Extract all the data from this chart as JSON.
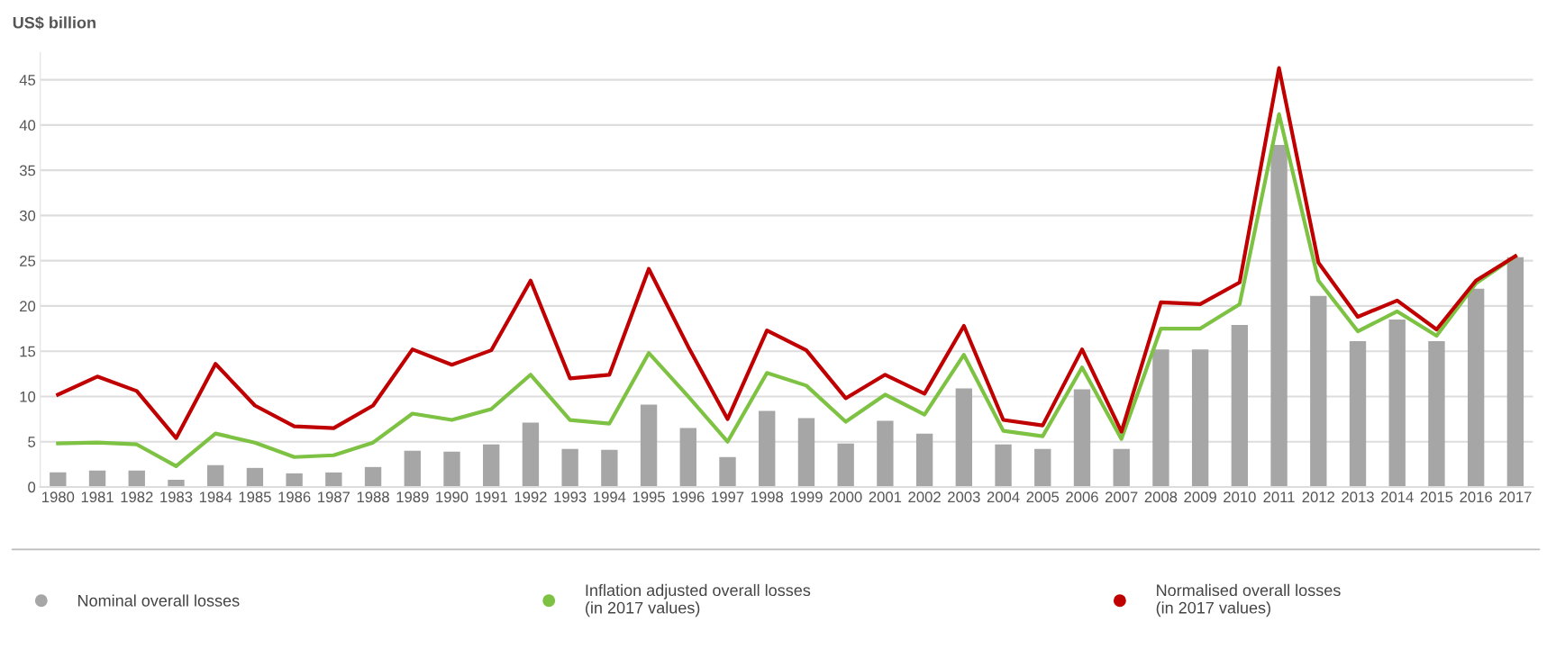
{
  "chart_data": {
    "type": "bar",
    "ylabel": "US$ billion",
    "categories": [
      "1980",
      "1981",
      "1982",
      "1983",
      "1984",
      "1985",
      "1986",
      "1987",
      "1988",
      "1989",
      "1990",
      "1991",
      "1992",
      "1993",
      "1994",
      "1995",
      "1996",
      "1997",
      "1998",
      "1999",
      "2000",
      "2001",
      "2002",
      "2003",
      "2004",
      "2005",
      "2006",
      "2007",
      "2008",
      "2009",
      "2010",
      "2011",
      "2012",
      "2013",
      "2014",
      "2015",
      "2016",
      "2017"
    ],
    "series": [
      {
        "name": "Nominal overall losses",
        "color": "#a6a6a6",
        "values": [
          1.6,
          1.8,
          1.8,
          0.8,
          2.4,
          2.1,
          1.5,
          1.6,
          2.2,
          4.0,
          3.9,
          4.7,
          7.1,
          4.2,
          4.1,
          9.1,
          6.5,
          3.3,
          8.4,
          7.6,
          4.8,
          7.3,
          5.9,
          10.9,
          4.7,
          4.2,
          10.8,
          4.2,
          15.2,
          15.2,
          17.9,
          37.8,
          21.1,
          16.1,
          18.5,
          16.1,
          21.9,
          25.4
        ]
      },
      {
        "name": "Inflation adjusted overall losses\n(in 2017 values)",
        "type": "line",
        "color": "#7dc242",
        "values": [
          4.8,
          4.9,
          4.7,
          2.3,
          5.9,
          4.9,
          3.3,
          3.5,
          4.9,
          8.1,
          7.4,
          8.6,
          12.4,
          7.4,
          7.0,
          14.8,
          10.0,
          5.0,
          12.6,
          11.2,
          7.2,
          10.2,
          8.0,
          14.6,
          6.2,
          5.6,
          13.2,
          5.3,
          17.5,
          17.5,
          20.2,
          41.2,
          22.8,
          17.2,
          19.4,
          16.7,
          22.5,
          25.5
        ]
      },
      {
        "name": "Normalised overall losses\n(in 2017 values)",
        "type": "line",
        "color": "#c00000",
        "values": [
          10.2,
          12.2,
          10.6,
          5.4,
          13.6,
          9.0,
          6.7,
          6.5,
          9.0,
          15.2,
          13.5,
          15.1,
          22.8,
          12.0,
          12.4,
          24.1,
          15.5,
          7.5,
          17.3,
          15.1,
          9.8,
          12.4,
          10.3,
          17.8,
          7.4,
          6.8,
          15.2,
          6.1,
          20.4,
          20.2,
          22.6,
          46.3,
          24.8,
          18.8,
          20.6,
          17.4,
          22.8,
          25.5
        ]
      }
    ],
    "ylim": [
      0,
      48
    ],
    "yticks": [
      0,
      5,
      10,
      15,
      20,
      25,
      30,
      35,
      40,
      45
    ],
    "grid": "y",
    "legend": "bottom"
  }
}
